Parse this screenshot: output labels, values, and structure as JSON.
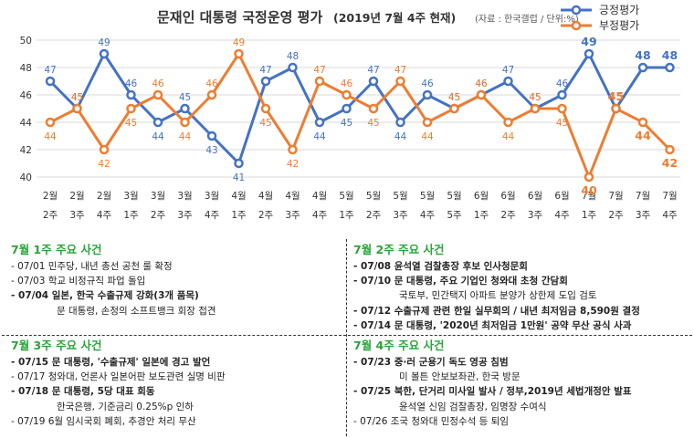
{
  "chart_data": {
    "type": "line",
    "title": "문재인 대통령 국정운영 평가",
    "title_period": "(2019년 7월 4주 현재)",
    "source_note": "(자료 : 한국갤럽 / 단위:%)",
    "x": [
      [
        "2월",
        "2주"
      ],
      [
        "2월",
        "3주"
      ],
      [
        "2월",
        "4주"
      ],
      [
        "3월",
        "1주"
      ],
      [
        "3월",
        "2주"
      ],
      [
        "3월",
        "3주"
      ],
      [
        "3월",
        "4주"
      ],
      [
        "4월",
        "1주"
      ],
      [
        "4월",
        "2주"
      ],
      [
        "4월",
        "3주"
      ],
      [
        "4월",
        "4주"
      ],
      [
        "5월",
        "1주"
      ],
      [
        "5월",
        "2주"
      ],
      [
        "5월",
        "3주"
      ],
      [
        "5월",
        "4주"
      ],
      [
        "5월",
        "5주"
      ],
      [
        "6월",
        "1주"
      ],
      [
        "6월",
        "2주"
      ],
      [
        "6월",
        "3주"
      ],
      [
        "6월",
        "4주"
      ],
      [
        "7월",
        "1주"
      ],
      [
        "7월",
        "2주"
      ],
      [
        "7월",
        "3주"
      ],
      [
        "7월",
        "4주"
      ]
    ],
    "ylim": [
      40,
      50
    ],
    "yticks": [
      "40",
      "42",
      "44",
      "46",
      "48",
      "50"
    ],
    "grid": true,
    "legend_position": "top-right",
    "series": [
      {
        "name": "긍정평가",
        "color": "#4472c4",
        "values": [
          47,
          45,
          49,
          46,
          44,
          45,
          43,
          41,
          47,
          48,
          44,
          45,
          47,
          44,
          46,
          45,
          46,
          47,
          45,
          46,
          49,
          45,
          48,
          48
        ]
      },
      {
        "name": "부정평가",
        "color": "#ed7d31",
        "values": [
          44,
          45,
          42,
          45,
          46,
          44,
          46,
          49,
          45,
          42,
          47,
          46,
          45,
          47,
          44,
          45,
          46,
          44,
          45,
          45,
          40,
          45,
          44,
          42
        ]
      }
    ]
  },
  "events": {
    "week1": {
      "title": "7월 1주 주요 사건",
      "lines": [
        {
          "text": "- 07/01 민주당, 내년 총선 공천 룰 확정",
          "bold": false,
          "sub": false
        },
        {
          "text": "- 07/03 학교 비정규직 파업 돌입",
          "bold": false,
          "sub": false
        },
        {
          "text": "- 07/04 일본, 한국 수출규제 강화(3개 품목)",
          "bold": true,
          "sub": false
        },
        {
          "text": "문 대통령, 손정의 소프트뱅크 회장 접견",
          "bold": false,
          "sub": true
        }
      ]
    },
    "week2": {
      "title": "7월 2주 주요 사건",
      "lines": [
        {
          "text": "- 07/08 윤석열 검찰총장 후보 인사청문회",
          "bold": true,
          "sub": false
        },
        {
          "text": "- 07/10 문 대통령, 주요 기업인 청와대 초청 간담회",
          "bold": true,
          "sub": false
        },
        {
          "text": "국토부, 민간택지 아파트 분양가 상한제 도입 검토",
          "bold": false,
          "sub": true
        },
        {
          "text": "- 07/12 수출규제 관련 한일 실무회의 / 내년 최저임금 8,590원 결정",
          "bold": true,
          "sub": false
        },
        {
          "text": "- 07/14 문 대통령, '2020년 최저임금 1만원' 공약 무산 공식 사과",
          "bold": true,
          "sub": false
        }
      ]
    },
    "week3": {
      "title": "7월 3주 주요 사건",
      "lines": [
        {
          "text": "- 07/15 문 대통령, '수출규제' 일본에 경고 발언",
          "bold": true,
          "sub": false
        },
        {
          "text": "- 07/17 청와대, 언론사 일본어판 보도관련 실명 비판",
          "bold": false,
          "sub": false
        },
        {
          "text": "- 07/18 문 대통령, 5당 대표 회동",
          "bold": true,
          "sub": false
        },
        {
          "text": "한국은행, 기준금리 0.25%p 인하",
          "bold": false,
          "sub": true
        },
        {
          "text": "- 07/19 6월 임시국회 폐회, 추경안 처리 무산",
          "bold": false,
          "sub": false
        }
      ]
    },
    "week4": {
      "title": "7월 4주 주요 사건",
      "lines": [
        {
          "text": "- 07/23 중·러 군용기 독도 영공 침범",
          "bold": true,
          "sub": false
        },
        {
          "text": "미 볼튼 안보보좌관, 한국 방문",
          "bold": false,
          "sub": true
        },
        {
          "text": "- 07/25 북한, 단거리 미사일 발사 / 정부,2019년 세법개정안 발표",
          "bold": true,
          "sub": false
        },
        {
          "text": "윤석열 신임 검찰총장, 임명장 수여식",
          "bold": false,
          "sub": true
        },
        {
          "text": "- 07/26 조국 청와대 민정수석 등 퇴임",
          "bold": false,
          "sub": false
        }
      ]
    }
  }
}
